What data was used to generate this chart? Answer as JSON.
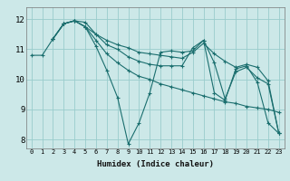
{
  "title": "",
  "xlabel": "Humidex (Indice chaleur)",
  "background_color": "#cce8e8",
  "grid_color": "#99cccc",
  "line_color": "#1a6e6e",
  "xlim": [
    -0.5,
    23.5
  ],
  "ylim": [
    7.7,
    12.4
  ],
  "yticks": [
    8,
    9,
    10,
    11,
    12
  ],
  "xticks": [
    0,
    1,
    2,
    3,
    4,
    5,
    6,
    7,
    8,
    9,
    10,
    11,
    12,
    13,
    14,
    15,
    16,
    17,
    18,
    19,
    20,
    21,
    22,
    23
  ],
  "lines": [
    {
      "x": [
        0,
        1,
        2,
        3,
        4,
        5,
        6,
        7,
        8,
        9,
        10,
        11,
        12,
        13,
        14,
        15,
        16,
        17,
        18,
        19,
        20,
        21,
        22,
        23
      ],
      "y": [
        10.8,
        10.8,
        11.35,
        11.85,
        11.95,
        11.75,
        11.3,
        10.85,
        10.55,
        10.3,
        10.1,
        10.0,
        9.85,
        9.75,
        9.65,
        9.55,
        9.45,
        9.35,
        9.25,
        9.2,
        9.1,
        9.05,
        9.0,
        8.9
      ]
    },
    {
      "x": [
        2,
        3,
        4,
        5,
        6,
        7,
        8,
        9,
        10,
        11,
        12,
        13,
        14,
        15,
        16,
        17,
        18,
        19,
        20,
        21,
        22,
        23
      ],
      "y": [
        11.35,
        11.85,
        11.95,
        11.75,
        11.1,
        10.3,
        9.4,
        7.85,
        8.55,
        9.55,
        10.9,
        10.95,
        10.9,
        10.95,
        11.3,
        9.55,
        9.3,
        10.35,
        10.45,
        9.9,
        8.55,
        8.2
      ]
    },
    {
      "x": [
        2,
        3,
        4,
        5,
        6,
        7,
        8,
        9,
        10,
        11,
        12,
        13,
        14,
        15,
        16,
        17,
        18,
        19,
        20,
        21,
        22,
        23
      ],
      "y": [
        11.35,
        11.85,
        11.95,
        11.9,
        11.5,
        11.15,
        11.0,
        10.75,
        10.6,
        10.5,
        10.45,
        10.45,
        10.45,
        11.05,
        11.3,
        10.55,
        9.35,
        10.25,
        10.4,
        10.05,
        9.85,
        8.2
      ]
    },
    {
      "x": [
        2,
        3,
        4,
        5,
        6,
        7,
        8,
        9,
        10,
        11,
        12,
        13,
        14,
        15,
        16,
        17,
        18,
        19,
        20,
        21,
        22,
        23
      ],
      "y": [
        11.35,
        11.85,
        11.95,
        11.75,
        11.5,
        11.3,
        11.15,
        11.05,
        10.9,
        10.85,
        10.8,
        10.75,
        10.7,
        10.9,
        11.2,
        10.85,
        10.6,
        10.4,
        10.5,
        10.4,
        9.95,
        8.2
      ]
    }
  ]
}
